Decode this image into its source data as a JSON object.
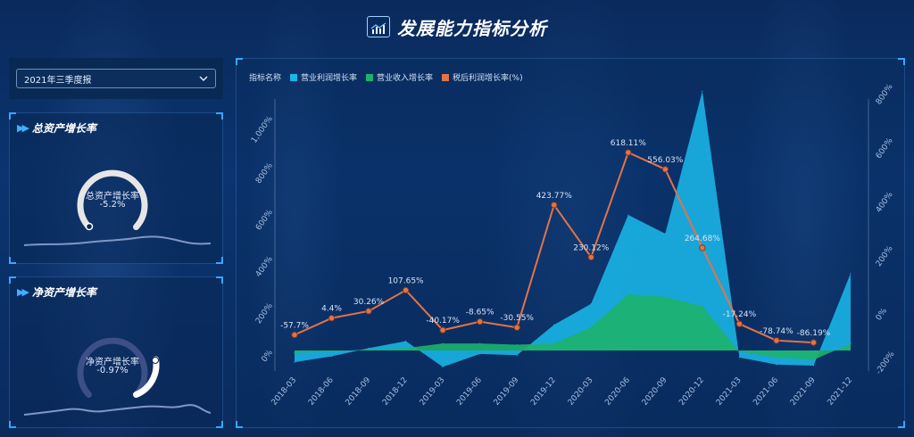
{
  "page": {
    "title": "发展能力指标分析"
  },
  "selector": {
    "value": "2021年三季度报"
  },
  "gauges": [
    {
      "panel_title": "总资产增长率",
      "label": "总资产增长率",
      "value_text": "-5.2%",
      "ring_color": "#e6e6e6",
      "dot_fill": "#0b2a57"
    },
    {
      "panel_title": "净资产增长率",
      "label": "净资产增长率",
      "value_text": "-0.97%",
      "ring_color": "#3c4f86",
      "dot_fill": "#ffffff"
    }
  ],
  "chart_data": {
    "type": "area",
    "legend_title": "指标名称",
    "categories": [
      "2018-03",
      "2018-06",
      "2018-09",
      "2018-12",
      "2019-03",
      "2019-06",
      "2019-09",
      "2019-12",
      "2020-03",
      "2020-06",
      "2020-09",
      "2020-12",
      "2021-03",
      "2021-06",
      "2021-09",
      "2021-12"
    ],
    "y_left": {
      "ticks": [
        0,
        200,
        400,
        600,
        800,
        1000
      ],
      "tick_labels": [
        "0%",
        "200%",
        "400%",
        "600%",
        "800%",
        "1,000%"
      ],
      "range": [
        -80,
        1080
      ]
    },
    "y_right": {
      "ticks": [
        -200,
        0,
        200,
        400,
        600,
        800
      ],
      "tick_labels": [
        "-200%",
        "0%",
        "200%",
        "400%",
        "600%",
        "800%"
      ],
      "range": [
        -240,
        840
      ]
    },
    "series": [
      {
        "name": "营业利润增长率",
        "color": "#1ab4e6",
        "axis": "left",
        "values": [
          -50,
          -25,
          10,
          40,
          -70,
          -15,
          -20,
          110,
          200,
          580,
          500,
          1110,
          -30,
          -60,
          -65,
          330
        ]
      },
      {
        "name": "营业收入增长率",
        "color": "#1db36b",
        "axis": "left",
        "values": [
          -10,
          -5,
          5,
          10,
          30,
          30,
          25,
          30,
          100,
          240,
          230,
          190,
          -5,
          -30,
          -40,
          30
        ]
      },
      {
        "name": "税后利润增长率(%)",
        "color": "#e2734a",
        "axis": "right",
        "values": [
          -57.7,
          4.4,
          30.26,
          107.65,
          -40.17,
          -8.65,
          -30.55,
          423.77,
          230.12,
          618.11,
          556.03,
          264.68,
          -17.24,
          -78.74,
          -86.19,
          null
        ],
        "labels": [
          "-57.7%",
          "4.4%",
          "30.26%",
          "107.65%",
          "-40.17%",
          "-8.65%",
          "-30.55%",
          "423.77%",
          "230.12%",
          "618.11%",
          "556.03%",
          "264.68%",
          "-17.24%",
          "-78.74%",
          "-86.19%",
          ""
        ]
      }
    ],
    "grid": false,
    "legend_position": "top-left"
  }
}
